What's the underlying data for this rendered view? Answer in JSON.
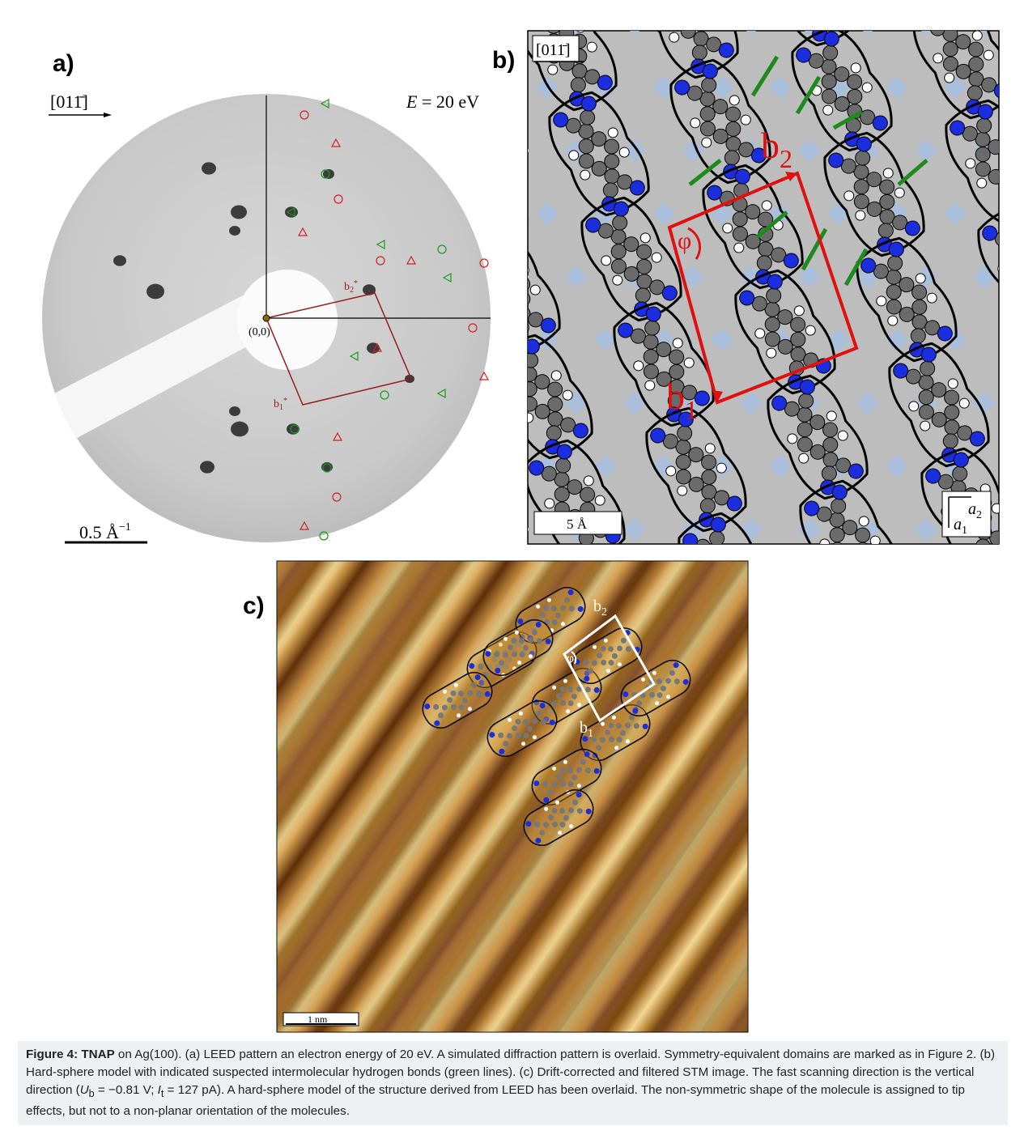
{
  "panel_a": {
    "label": "a)",
    "direction": "[011̄]",
    "energy": {
      "symbol": "E",
      "rest": " = 20 eV"
    },
    "origin": "(0,0)",
    "b2": {
      "base": "b",
      "sub": "2",
      "sup": "*"
    },
    "b1": {
      "base": "b",
      "sub": "1",
      "sup": "*"
    },
    "scale_bar": {
      "base": "0.5 Å",
      "sup": "−1"
    }
  },
  "panel_b": {
    "label": "b)",
    "direction": "[011̄]",
    "b2": {
      "base": "b",
      "sub": "2"
    },
    "b1": {
      "base": "b",
      "sub": "1"
    },
    "angle": "φ",
    "scale_bar": "5 Å",
    "a2": {
      "base": "a",
      "sub": "2"
    },
    "a1": {
      "base": "a",
      "sub": "1"
    }
  },
  "panel_c": {
    "label": "c)",
    "b2": {
      "base": "b",
      "sub": "2"
    },
    "b1": {
      "base": "b",
      "sub": "1"
    },
    "angle": "φ",
    "scale_bar": "1 nm"
  },
  "caption": {
    "segments": [
      "Figure 4: TNAP",
      " on Ag(100). (a) LEED pattern an electron energy of 20 eV. A simulated diffraction pattern is overlaid. Symmetry-equivalent domains are marked as in Figure 2. (b) Hard-sphere model with indicated suspected intermolecular hydrogen bonds (green lines). (c) Drift-corrected and filtered STM image. The fast scanning direction is the vertical direction (",
      "U",
      "b",
      " = −0.81 V; ",
      "I",
      "t",
      " = 127 pA). A hard-sphere model of the structure derived from LEED has been overlaid. The non-symmetric shape of the molecule is assigned to tip effects, but not to a non-planar orientation of the molecules."
    ]
  }
}
